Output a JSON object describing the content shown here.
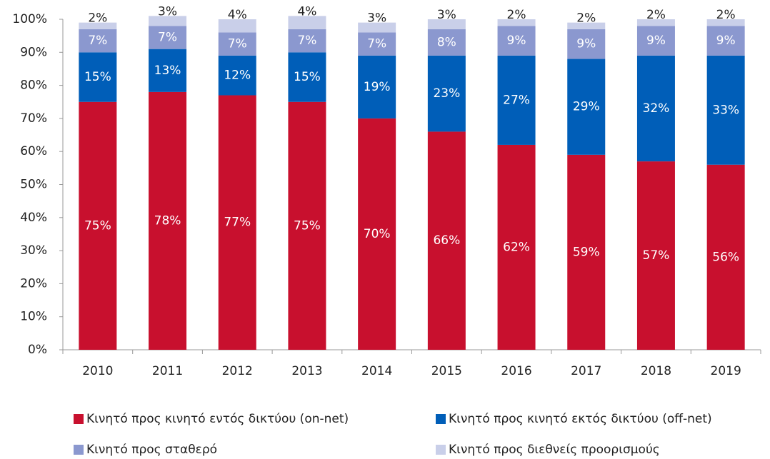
{
  "chart_data": {
    "type": "stacked_bar",
    "categories": [
      "2010",
      "2011",
      "2012",
      "2013",
      "2014",
      "2015",
      "2016",
      "2017",
      "2018",
      "2019"
    ],
    "series": [
      {
        "name": "Κινητό προς κινητό εντός δικτύου (on-net)",
        "color": "#c8102e",
        "values": [
          75,
          78,
          77,
          75,
          70,
          66,
          62,
          59,
          57,
          56
        ],
        "value_labels": [
          "75%",
          "78%",
          "77%",
          "75%",
          "70%",
          "66%",
          "62%",
          "59%",
          "57%",
          "56%"
        ]
      },
      {
        "name": "Κινητό προς κινητό εκτός δικτύου (off-net)",
        "color": "#005eb8",
        "values": [
          15,
          13,
          12,
          15,
          19,
          23,
          27,
          29,
          32,
          33
        ],
        "value_labels": [
          "15%",
          "13%",
          "12%",
          "15%",
          "19%",
          "23%",
          "27%",
          "29%",
          "32%",
          "33%"
        ]
      },
      {
        "name": "Κινητό προς σταθερό",
        "color": "#8b98cf",
        "values": [
          7,
          7,
          7,
          7,
          7,
          8,
          9,
          9,
          9,
          9
        ],
        "value_labels": [
          "7%",
          "7%",
          "7%",
          "7%",
          "7%",
          "8%",
          "9%",
          "9%",
          "9%",
          "9%"
        ]
      },
      {
        "name": "Κινητό προς διεθνείς προορισμούς",
        "color": "#c9cfe9",
        "values": [
          2,
          3,
          4,
          4,
          3,
          3,
          2,
          2,
          2,
          2
        ],
        "value_labels": [
          "2%",
          "3%",
          "4%",
          "4%",
          "3%",
          "3%",
          "2%",
          "2%",
          "2%",
          "2%"
        ]
      }
    ],
    "ylim": [
      0,
      100
    ],
    "yticks": [
      {
        "value": 0,
        "label": "0%"
      },
      {
        "value": 10,
        "label": "10%"
      },
      {
        "value": 20,
        "label": "20%"
      },
      {
        "value": 30,
        "label": "30%"
      },
      {
        "value": 40,
        "label": "40%"
      },
      {
        "value": 50,
        "label": "50%"
      },
      {
        "value": 60,
        "label": "60%"
      },
      {
        "value": 70,
        "label": "70%"
      },
      {
        "value": 80,
        "label": "80%"
      },
      {
        "value": 90,
        "label": "90%"
      },
      {
        "value": 100,
        "label": "100%"
      }
    ],
    "legend": "bottom"
  }
}
